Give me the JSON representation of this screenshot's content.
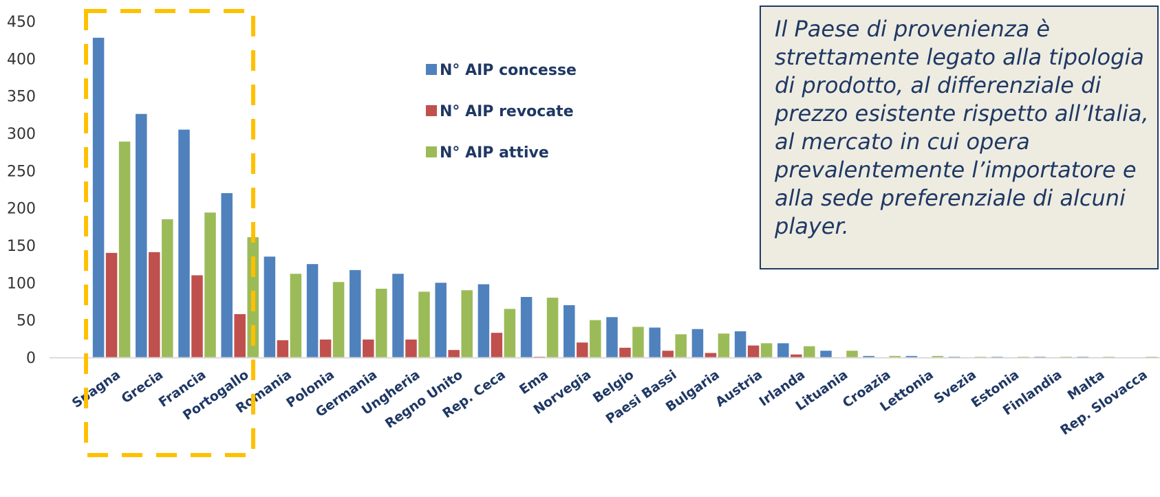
{
  "chart_data": {
    "type": "bar",
    "categories": [
      "Spagna",
      "Grecia",
      "Francia",
      "Portogallo",
      "Romania",
      "Polonia",
      "Germania",
      "Ungheria",
      "Regno Unito",
      "Rep. Ceca",
      "Ema",
      "Norvegia",
      "Belgio",
      "Paesi Bassi",
      "Bulgaria",
      "Austria",
      "Irlanda",
      "Lituania",
      "Croazia",
      "Lettonia",
      "Svezia",
      "Estonia",
      "Finlandia",
      "Malta",
      "Rep. Slovacca"
    ],
    "series": [
      {
        "name": "N° AIP concesse",
        "color": "#4f81bd",
        "values": [
          428,
          326,
          305,
          220,
          135,
          125,
          117,
          112,
          100,
          98,
          81,
          70,
          54,
          40,
          38,
          35,
          19,
          9,
          2,
          2,
          1,
          1,
          1,
          1,
          0
        ]
      },
      {
        "name": "N° AIP revocate",
        "color": "#c0504d",
        "values": [
          140,
          141,
          110,
          58,
          23,
          24,
          24,
          24,
          10,
          33,
          1,
          20,
          13,
          9,
          6,
          16,
          4,
          0,
          0,
          0,
          0,
          0,
          0,
          0,
          0
        ]
      },
      {
        "name": "N° AIP attive",
        "color": "#9bbb59",
        "values": [
          289,
          185,
          194,
          161,
          112,
          101,
          92,
          88,
          90,
          65,
          80,
          50,
          41,
          31,
          32,
          19,
          15,
          9,
          2,
          2,
          1,
          1,
          1,
          1,
          1
        ]
      }
    ],
    "yticks": [
      0,
      50,
      100,
      150,
      200,
      250,
      300,
      350,
      400,
      450
    ],
    "ylim": [
      0,
      450
    ],
    "title": "",
    "xlabel": "",
    "ylabel": "",
    "grid": false,
    "legend_position": "upper-middle",
    "highlight_color": "#ffc000"
  },
  "note": {
    "text": "Il Paese di provenienza è strettamente legato alla tipologia di prodotto, al differenziale di prezzo esistente rispetto all’Italia, al mercato in cui opera prevalentemente l’importatore e alla sede preferenziale di alcuni player."
  }
}
